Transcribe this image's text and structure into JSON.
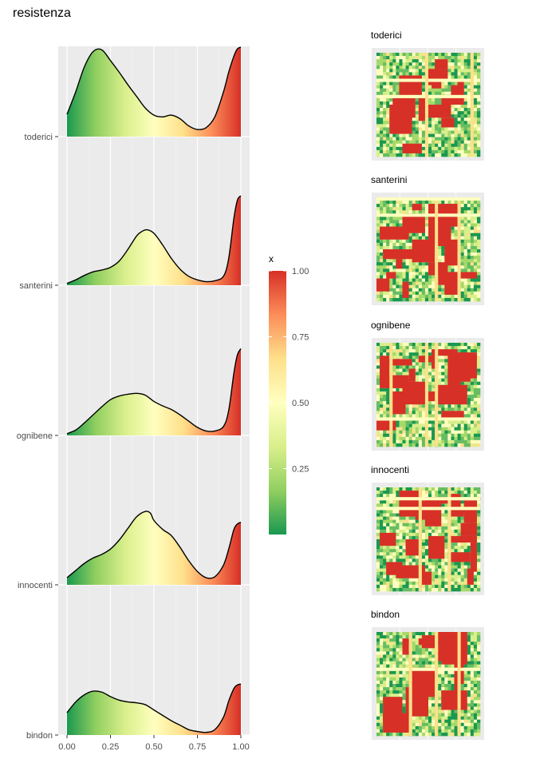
{
  "title": "resistenza",
  "chart_data": {
    "type": "ridgeline",
    "x_axis": {
      "range": [
        0,
        1
      ],
      "tick_labels": [
        "0.00",
        "0.25",
        "0.50",
        "0.75",
        "1.00"
      ],
      "ticks": [
        0,
        0.25,
        0.5,
        0.75,
        1
      ]
    },
    "grid": true,
    "fill_gradient": [
      "#1a9850",
      "#91cf60",
      "#d9ef8b",
      "#ffffbf",
      "#fee08b",
      "#fc8d59",
      "#d73027"
    ],
    "series": [
      {
        "name": "toderici",
        "x": [
          0,
          0.05,
          0.1,
          0.15,
          0.2,
          0.25,
          0.3,
          0.35,
          0.4,
          0.45,
          0.5,
          0.55,
          0.6,
          0.65,
          0.7,
          0.75,
          0.8,
          0.85,
          0.9,
          0.93,
          0.96,
          0.98,
          1.0
        ],
        "density": [
          0.25,
          0.5,
          0.78,
          0.95,
          0.97,
          0.85,
          0.72,
          0.58,
          0.45,
          0.32,
          0.24,
          0.22,
          0.24,
          0.2,
          0.12,
          0.08,
          0.1,
          0.22,
          0.5,
          0.72,
          0.9,
          0.98,
          1.0
        ]
      },
      {
        "name": "santerini",
        "x": [
          0,
          0.05,
          0.1,
          0.15,
          0.2,
          0.25,
          0.3,
          0.35,
          0.4,
          0.43,
          0.46,
          0.5,
          0.55,
          0.6,
          0.65,
          0.7,
          0.75,
          0.8,
          0.85,
          0.9,
          0.93,
          0.96,
          0.98,
          1.0
        ],
        "density": [
          0.02,
          0.06,
          0.11,
          0.15,
          0.17,
          0.2,
          0.27,
          0.4,
          0.55,
          0.6,
          0.62,
          0.58,
          0.45,
          0.3,
          0.18,
          0.1,
          0.06,
          0.04,
          0.05,
          0.1,
          0.3,
          0.75,
          0.95,
          1.0
        ]
      },
      {
        "name": "ognibene",
        "x": [
          0,
          0.05,
          0.1,
          0.15,
          0.2,
          0.25,
          0.3,
          0.35,
          0.4,
          0.45,
          0.5,
          0.55,
          0.6,
          0.65,
          0.7,
          0.75,
          0.8,
          0.85,
          0.9,
          0.93,
          0.96,
          0.98,
          1.0
        ],
        "density": [
          0.02,
          0.06,
          0.14,
          0.23,
          0.32,
          0.4,
          0.44,
          0.46,
          0.47,
          0.45,
          0.38,
          0.33,
          0.29,
          0.23,
          0.16,
          0.09,
          0.05,
          0.05,
          0.1,
          0.28,
          0.7,
          0.9,
          0.97
        ]
      },
      {
        "name": "innocenti",
        "x": [
          0,
          0.05,
          0.1,
          0.15,
          0.2,
          0.25,
          0.3,
          0.35,
          0.4,
          0.45,
          0.48,
          0.5,
          0.55,
          0.6,
          0.65,
          0.7,
          0.75,
          0.8,
          0.85,
          0.9,
          0.93,
          0.96,
          0.98,
          1.0
        ],
        "density": [
          0.08,
          0.16,
          0.24,
          0.3,
          0.34,
          0.4,
          0.5,
          0.63,
          0.76,
          0.82,
          0.8,
          0.72,
          0.62,
          0.55,
          0.42,
          0.27,
          0.15,
          0.08,
          0.09,
          0.22,
          0.4,
          0.62,
          0.68,
          0.7
        ]
      },
      {
        "name": "bindon",
        "x": [
          0,
          0.05,
          0.1,
          0.15,
          0.2,
          0.25,
          0.3,
          0.35,
          0.4,
          0.45,
          0.5,
          0.55,
          0.6,
          0.65,
          0.7,
          0.75,
          0.8,
          0.85,
          0.9,
          0.93,
          0.96,
          0.98,
          1.0
        ],
        "density": [
          0.25,
          0.37,
          0.45,
          0.49,
          0.48,
          0.43,
          0.39,
          0.37,
          0.36,
          0.34,
          0.28,
          0.22,
          0.16,
          0.11,
          0.06,
          0.04,
          0.03,
          0.06,
          0.2,
          0.38,
          0.52,
          0.56,
          0.57
        ]
      }
    ],
    "legend": {
      "title": "x",
      "range": [
        0,
        1
      ],
      "ticks": [
        0.25,
        0.5,
        0.75,
        1.0
      ],
      "tick_labels": [
        "0.25",
        "0.50",
        "0.75",
        "1.00"
      ],
      "placement": "right-of-ridgeline"
    },
    "maps": [
      {
        "title": "toderici"
      },
      {
        "title": "santerini"
      },
      {
        "title": "ognibene"
      },
      {
        "title": "innocenti"
      },
      {
        "title": "bindon"
      }
    ]
  }
}
